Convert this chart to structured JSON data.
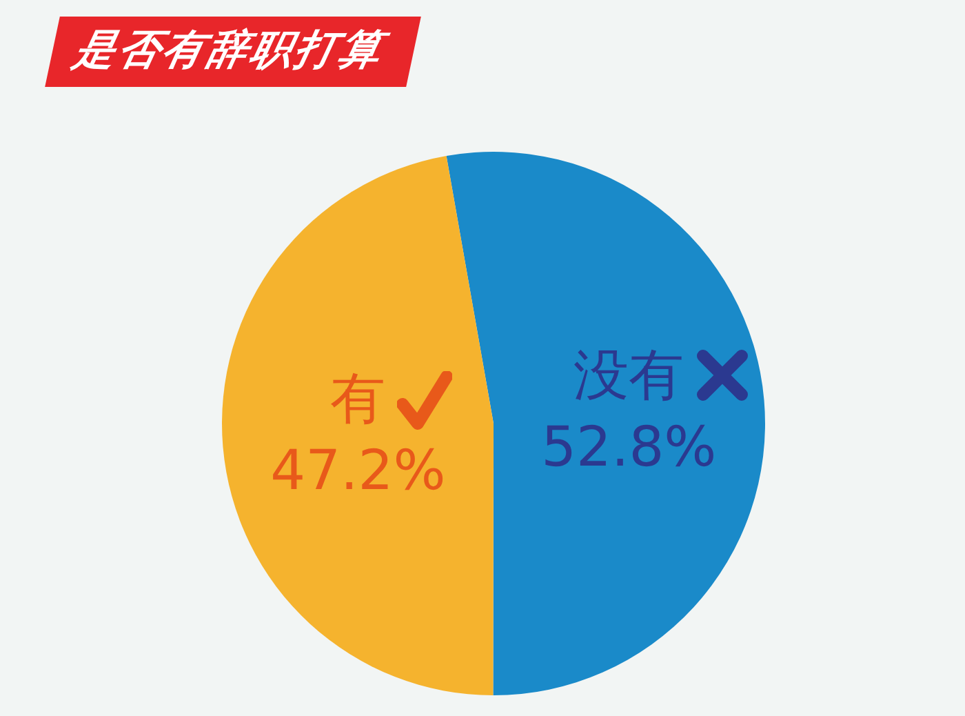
{
  "chart_data": {
    "type": "pie",
    "title": "是否有辞职打算",
    "categories": [
      "没有",
      "有"
    ],
    "values": [
      52.8,
      47.2
    ],
    "colors": [
      "#1a8ac9",
      "#f5b32e"
    ],
    "value_labels": [
      "52.8%",
      "47.2%"
    ],
    "legend": false
  }
}
